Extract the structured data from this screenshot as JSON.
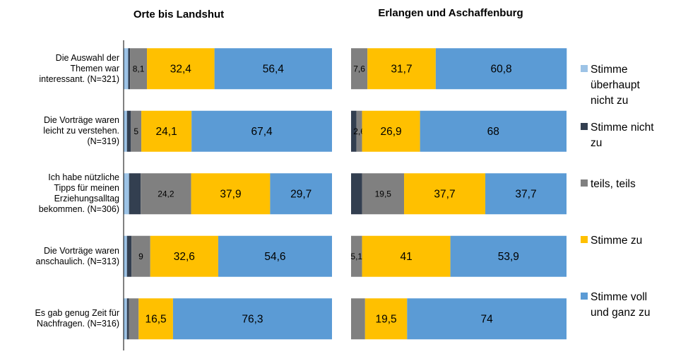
{
  "chart_data": [
    {
      "type": "stacked-bar-horizontal",
      "title": "Orte bis Landshut",
      "categories": [
        "Die Auswahl der\nThemen war\ninteressant.  (N=321)",
        "Die Vorträge waren\nleicht zu verstehen.\n(N=319)",
        "Ich habe nützliche\nTipps für meinen\nErziehungsalltag\nbekommen.  (N=306)",
        "Die Vorträge waren\nanschaulich.  (N=313)",
        "Es gab genug Zeit für\nNachfragen. (N=316)"
      ],
      "xlim": [
        0,
        100
      ],
      "series": [
        {
          "name": "Stimme\nüberhaupt\nnicht zu",
          "color": "#9dc3e6",
          "values": [
            2.2,
            1.6,
            2.6,
            1.6,
            1.6
          ]
        },
        {
          "name": "Stimme nicht\nzu",
          "color": "#333f50",
          "values": [
            0.9,
            1.9,
            5.6,
            2.2,
            1.0
          ]
        },
        {
          "name": "teils, teils",
          "color": "#808080",
          "values": [
            8.1,
            5,
            24.2,
            9,
            4.6
          ],
          "value_labels": [
            "8,1",
            "5",
            "24,2",
            "9",
            null
          ]
        },
        {
          "name": "Stimme zu",
          "color": "#ffc000",
          "values": [
            32.4,
            24.1,
            37.9,
            32.6,
            16.5
          ],
          "value_labels": [
            "32,4",
            "24,1",
            "37,9",
            "32,6",
            "16,5"
          ]
        },
        {
          "name": "Stimme voll\nund ganz zu",
          "color": "#5b9bd5",
          "values": [
            56.4,
            67.4,
            29.7,
            54.6,
            76.3
          ],
          "value_labels": [
            "56,4",
            "67,4",
            "29,7",
            "54,6",
            "76,3"
          ]
        }
      ]
    },
    {
      "type": "stacked-bar-horizontal",
      "title": "Erlangen und Aschaffenburg",
      "categories": [
        null,
        null,
        null,
        null,
        null
      ],
      "xlim": [
        0,
        100
      ],
      "series": [
        {
          "color": "#9dc3e6",
          "values": [
            0,
            0,
            0,
            0,
            0
          ]
        },
        {
          "color": "#333f50",
          "values": [
            0,
            2.5,
            5.1,
            0,
            0
          ]
        },
        {
          "color": "#808080",
          "values": [
            7.6,
            2.6,
            19.5,
            5.1,
            6.5
          ],
          "value_labels": [
            "7,6",
            "2,6",
            "19,5",
            "5,1",
            null
          ]
        },
        {
          "color": "#ffc000",
          "values": [
            31.7,
            26.9,
            37.7,
            41,
            19.5
          ],
          "value_labels": [
            "31,7",
            "26,9",
            "37,7",
            "41",
            "19,5"
          ]
        },
        {
          "color": "#5b9bd5",
          "values": [
            60.8,
            68,
            37.7,
            53.9,
            74
          ],
          "value_labels": [
            "60,8",
            "68",
            "37,7",
            "53,9",
            "74"
          ]
        }
      ]
    }
  ]
}
